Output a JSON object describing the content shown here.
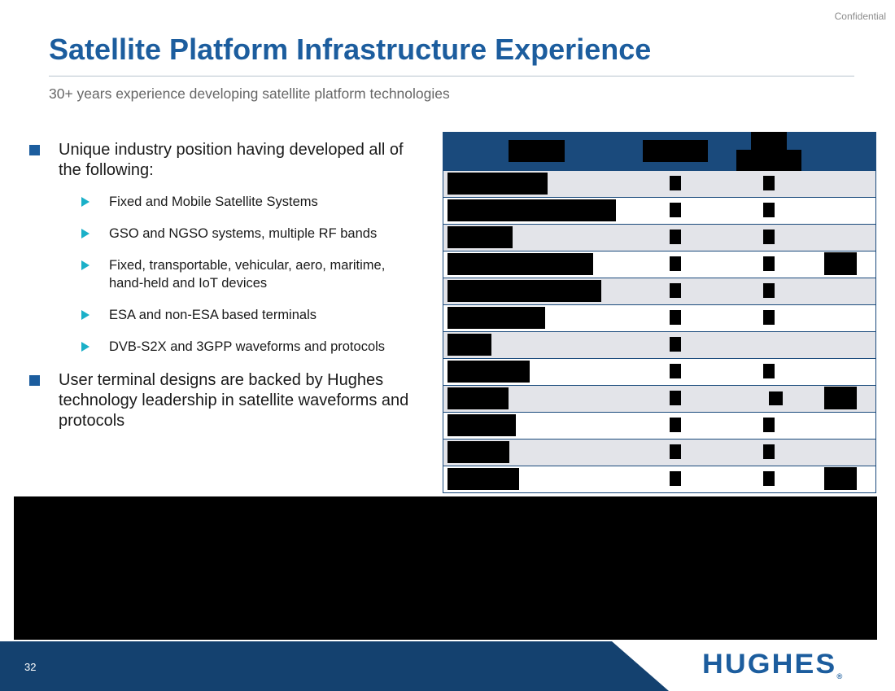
{
  "header": {
    "confidential": "Confidential",
    "title": "Satellite Platform Infrastructure Experience",
    "subtitle": "30+ years experience developing satellite platform technologies"
  },
  "bullets": [
    {
      "text": "Unique industry position having developed all of the following:",
      "children": [
        "Fixed and Mobile Satellite Systems",
        "GSO and NGSO systems, multiple RF bands",
        "Fixed, transportable, vehicular, aero, maritime, hand-held and IoT devices",
        "ESA and non-ESA based terminals",
        "DVB-S2X and 3GPP waveforms and protocols"
      ]
    },
    {
      "text": "User terminal designs are backed by Hughes technology leadership in satellite waveforms and protocols"
    }
  ],
  "table": {
    "note": "",
    "row_count": 12
  },
  "footer": {
    "page_number": "32",
    "logo_text": "HUGHES",
    "logo_mark": "®"
  },
  "colors": {
    "title_blue": "#1c5d9e",
    "navy": "#1a4a7c",
    "bullet_square": "#1c5d9e",
    "bullet_triangle": "#1ab0c8",
    "row_shade": "#e3e4e9",
    "footer_navy": "#14416f"
  }
}
